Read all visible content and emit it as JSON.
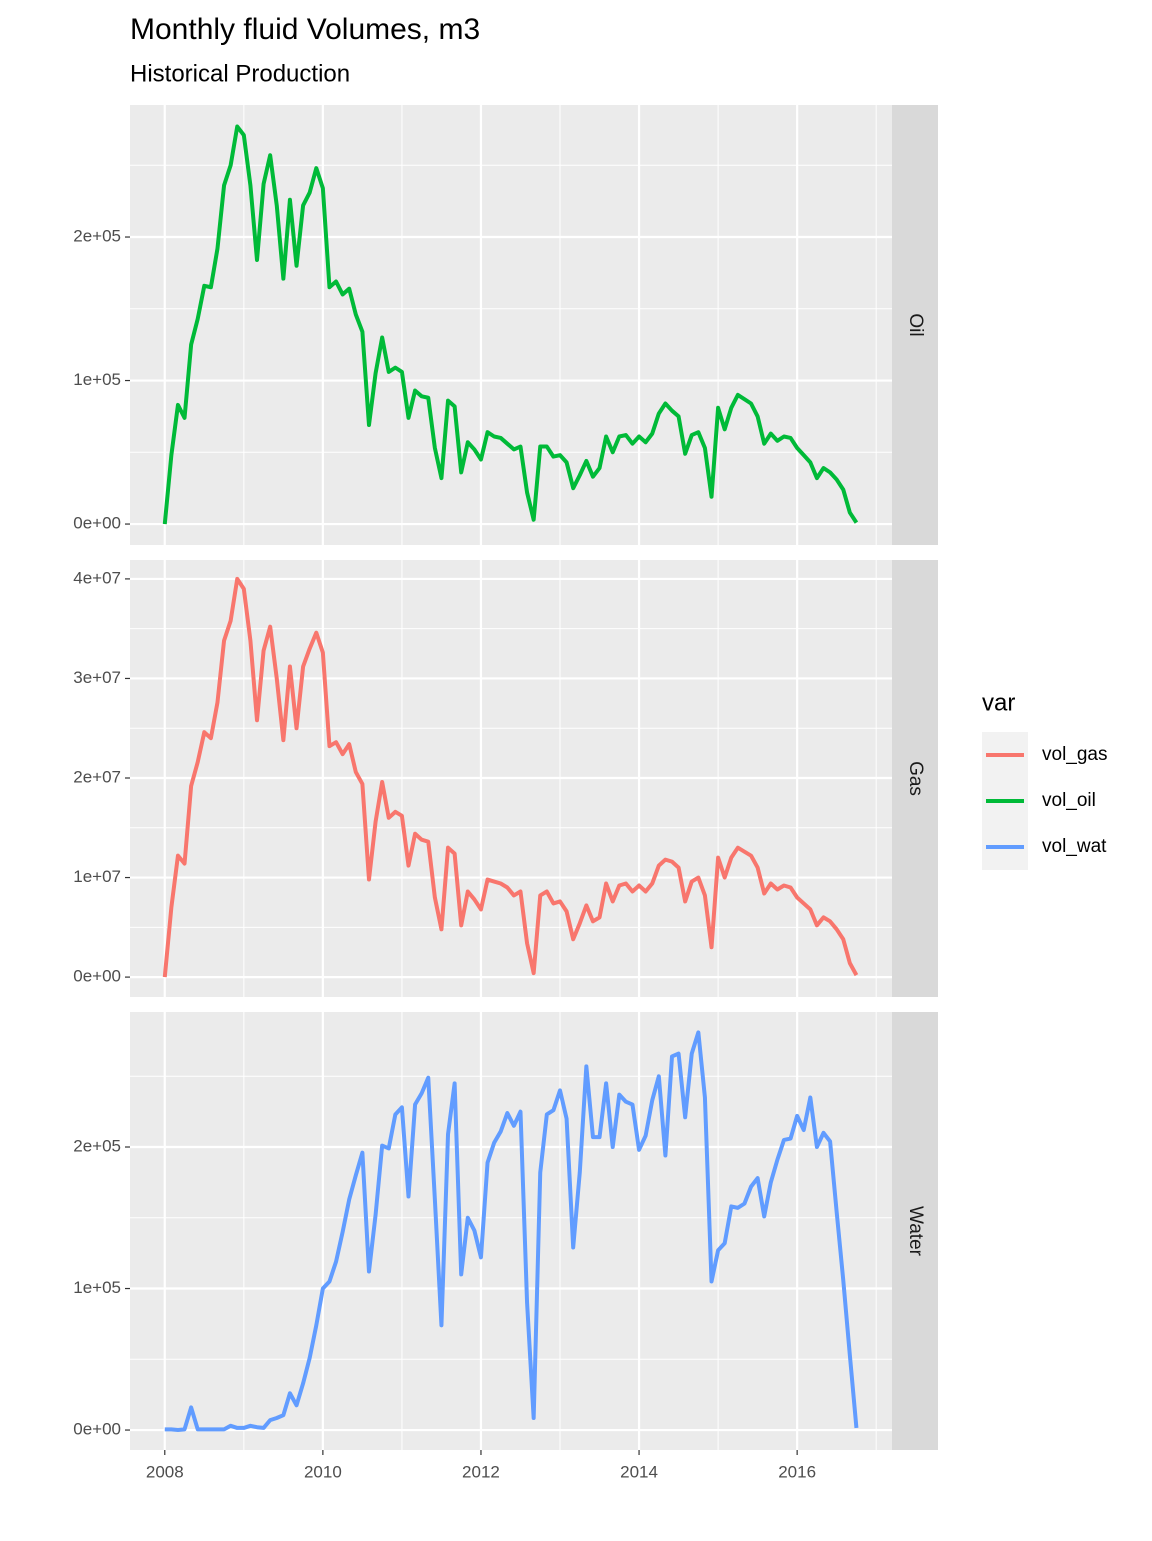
{
  "chart_data": {
    "type": "line",
    "title": "Monthly fluid Volumes, m3",
    "subtitle": "Historical Production",
    "legend_title": "var",
    "x": [
      2008,
      2008.0833,
      2008.1667,
      2008.25,
      2008.3333,
      2008.4167,
      2008.5,
      2008.5833,
      2008.6667,
      2008.75,
      2008.8333,
      2008.9167,
      2009,
      2009.0833,
      2009.1667,
      2009.25,
      2009.3333,
      2009.4167,
      2009.5,
      2009.5833,
      2009.6667,
      2009.75,
      2009.8333,
      2009.9167,
      2010,
      2010.0833,
      2010.1667,
      2010.25,
      2010.3333,
      2010.4167,
      2010.5,
      2010.5833,
      2010.6667,
      2010.75,
      2010.8333,
      2010.9167,
      2011,
      2011.0833,
      2011.1667,
      2011.25,
      2011.3333,
      2011.4167,
      2011.5,
      2011.5833,
      2011.6667,
      2011.75,
      2011.8333,
      2011.9167,
      2012,
      2012.0833,
      2012.1667,
      2012.25,
      2012.3333,
      2012.4167,
      2012.5,
      2012.5833,
      2012.6667,
      2012.75,
      2012.8333,
      2012.9167,
      2013,
      2013.0833,
      2013.1667,
      2013.25,
      2013.3333,
      2013.4167,
      2013.5,
      2013.5833,
      2013.6667,
      2013.75,
      2013.8333,
      2013.9167,
      2014,
      2014.0833,
      2014.1667,
      2014.25,
      2014.3333,
      2014.4167,
      2014.5,
      2014.5833,
      2014.6667,
      2014.75,
      2014.8333,
      2014.9167,
      2015,
      2015.0833,
      2015.1667,
      2015.25,
      2015.3333,
      2015.4167,
      2015.5,
      2015.5833,
      2015.6667,
      2015.75,
      2015.8333,
      2015.9167,
      2016,
      2016.0833,
      2016.1667,
      2016.25,
      2016.3333,
      2016.4167,
      2016.5,
      2016.5833,
      2016.6667,
      2016.75
    ],
    "xlim": [
      2007.56,
      2017.2
    ],
    "xticks": [
      2008,
      2010,
      2012,
      2014,
      2016
    ],
    "grid": true,
    "facets": [
      {
        "label": "Oil",
        "ylim": [
          -14600,
          292000
        ],
        "yticks": [
          {
            "value": 0,
            "label": "0e+00"
          },
          {
            "value": 100000,
            "label": "1e+05"
          },
          {
            "value": 200000,
            "label": "2e+05"
          }
        ],
        "series": [
          {
            "name": "vol_oil",
            "color": "#00ba38",
            "values": [
              0,
              48000,
              83000,
              74000,
              125000,
              143000,
              166000,
              165000,
              192000,
              236000,
              250000,
              277000,
              271000,
              236000,
              184000,
              237000,
              257000,
              222000,
              171000,
              226000,
              180000,
              222000,
              231000,
              248000,
              234000,
              165000,
              169000,
              160000,
              164000,
              146000,
              134000,
              69000,
              105000,
              130000,
              106000,
              109000,
              106000,
              74000,
              93000,
              89000,
              88000,
              53000,
              32000,
              86000,
              82000,
              36000,
              57000,
              52000,
              45000,
              64000,
              61000,
              60000,
              56000,
              52000,
              54000,
              22000,
              3000,
              54000,
              54000,
              47000,
              48000,
              43000,
              25000,
              34000,
              44000,
              33000,
              39000,
              61000,
              50000,
              61000,
              62000,
              56000,
              61000,
              57000,
              63000,
              77000,
              84000,
              79000,
              75000,
              49000,
              62000,
              64000,
              53000,
              19000,
              81000,
              66000,
              81000,
              90000,
              87000,
              84000,
              75000,
              56000,
              63000,
              58000,
              61000,
              60000,
              53000,
              48000,
              43000,
              32000,
              39000,
              36000,
              31000,
              24000,
              8000,
              1000
            ]
          }
        ]
      },
      {
        "label": "Gas",
        "ylim": [
          -2000000,
          41900000
        ],
        "yticks": [
          {
            "value": 0,
            "label": "0e+00"
          },
          {
            "value": 10000000,
            "label": "1e+07"
          },
          {
            "value": 20000000,
            "label": "2e+07"
          },
          {
            "value": 30000000,
            "label": "3e+07"
          },
          {
            "value": 40000000,
            "label": "4e+07"
          }
        ],
        "series": [
          {
            "name": "vol_gas",
            "color": "#f8766d",
            "values": [
              0,
              7000000,
              12200000,
              11400000,
              19200000,
              21600000,
              24600000,
              24000000,
              27600000,
              33800000,
              35800000,
              40000000,
              39000000,
              33800000,
              25800000,
              32800000,
              35200000,
              30000000,
              23800000,
              31200000,
              25000000,
              31200000,
              33000000,
              34600000,
              32600000,
              23200000,
              23600000,
              22400000,
              23400000,
              20600000,
              19400000,
              9800000,
              15600000,
              19600000,
              16000000,
              16600000,
              16200000,
              11200000,
              14400000,
              13800000,
              13600000,
              8000000,
              4800000,
              13000000,
              12400000,
              5200000,
              8600000,
              7800000,
              6800000,
              9800000,
              9600000,
              9400000,
              9000000,
              8200000,
              8600000,
              3400000,
              400000,
              8200000,
              8600000,
              7400000,
              7600000,
              6600000,
              3800000,
              5400000,
              7200000,
              5600000,
              6000000,
              9400000,
              7600000,
              9200000,
              9400000,
              8600000,
              9200000,
              8600000,
              9400000,
              11200000,
              11800000,
              11600000,
              11000000,
              7600000,
              9600000,
              10000000,
              8200000,
              3000000,
              12000000,
              10000000,
              12000000,
              13000000,
              12600000,
              12200000,
              11000000,
              8400000,
              9400000,
              8800000,
              9200000,
              9000000,
              8000000,
              7400000,
              6800000,
              5200000,
              6000000,
              5600000,
              4800000,
              3800000,
              1400000,
              200000
            ]
          }
        ]
      },
      {
        "label": "Water",
        "ylim": [
          -14100,
          295400
        ],
        "yticks": [
          {
            "value": 0,
            "label": "0e+00"
          },
          {
            "value": 100000,
            "label": "1e+05"
          },
          {
            "value": 200000,
            "label": "2e+05"
          }
        ],
        "series": [
          {
            "name": "vol_wat",
            "color": "#619cff",
            "values": [
              500,
              500,
              0,
              500,
              16000,
              500,
              500,
              500,
              500,
              500,
              3000,
              1500,
              1500,
              3000,
              2000,
              1500,
              7000,
              8500,
              10500,
              26000,
              17500,
              33000,
              51000,
              74000,
              100000,
              105000,
              119000,
              140000,
              163000,
              180000,
              196000,
              112000,
              152000,
              201000,
              199000,
              223000,
              228000,
              165000,
              230000,
              238000,
              249000,
              163000,
              74000,
              209000,
              245000,
              110000,
              150000,
              141000,
              122000,
              189000,
              203000,
              211000,
              224000,
              215000,
              225000,
              90000,
              8500,
              182000,
              223000,
              226000,
              240000,
              220000,
              129000,
              182000,
              257000,
              207000,
              207000,
              245000,
              200000,
              237000,
              232000,
              230000,
              198000,
              208000,
              233000,
              250000,
              194000,
              264000,
              266000,
              221000,
              266000,
              281000,
              235000,
              105000,
              127000,
              132000,
              158000,
              157000,
              160000,
              172000,
              178000,
              151000,
              175000,
              191000,
              205000,
              206000,
              222000,
              212000,
              235000,
              200000,
              210000,
              204000,
              154000,
              106000,
              53000,
              1500
            ]
          }
        ]
      }
    ]
  }
}
